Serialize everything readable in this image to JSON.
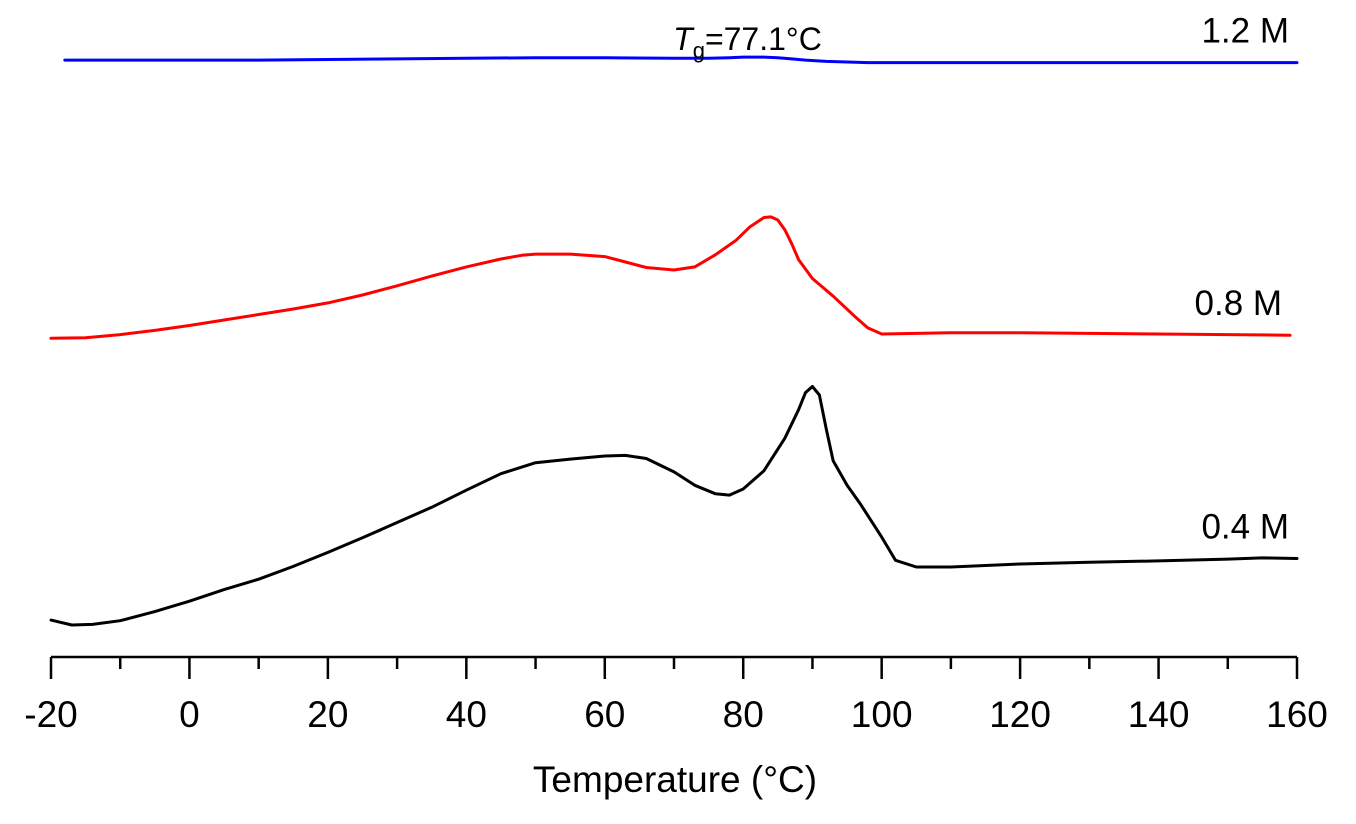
{
  "chart_data": {
    "type": "line",
    "title": "",
    "xlabel": "Temperature (°C)",
    "ylabel": "",
    "xlim": [
      -20,
      160
    ],
    "ylim": [
      0,
      1
    ],
    "xticks": [
      -20,
      0,
      20,
      40,
      60,
      80,
      100,
      120,
      140,
      160
    ],
    "xtick_labels": [
      "-20",
      "0",
      "20",
      "40",
      "60",
      "80",
      "100",
      "120",
      "140",
      "160"
    ],
    "minor_xticks": [
      -10,
      10,
      30,
      50,
      70,
      90,
      110,
      130,
      150
    ],
    "grid": false,
    "annotations": [
      {
        "text_main": "T",
        "text_sub": "g",
        "text_rest": "=77.1°C",
        "x": 77.1
      }
    ],
    "series": [
      {
        "name": "1.2 M",
        "color": "#0000ff",
        "x": [
          -18,
          -10,
          0,
          10,
          20,
          30,
          40,
          50,
          60,
          70,
          75,
          78,
          80,
          83,
          85,
          87,
          89,
          92,
          95,
          98,
          100,
          110,
          120,
          130,
          140,
          150,
          160
        ],
        "y": [
          0.967,
          0.967,
          0.967,
          0.967,
          0.968,
          0.969,
          0.97,
          0.971,
          0.971,
          0.97,
          0.97,
          0.971,
          0.972,
          0.972,
          0.971,
          0.969,
          0.967,
          0.965,
          0.964,
          0.963,
          0.963,
          0.963,
          0.963,
          0.963,
          0.963,
          0.963,
          0.963
        ]
      },
      {
        "name": "0.8 M",
        "color": "#ff0000",
        "x": [
          -20,
          -15,
          -10,
          -5,
          0,
          5,
          10,
          15,
          20,
          25,
          30,
          35,
          40,
          45,
          48,
          50,
          55,
          60,
          63,
          66,
          70,
          73,
          76,
          79,
          81,
          83,
          84,
          85,
          86,
          87,
          88,
          90,
          93,
          96,
          98,
          100,
          105,
          110,
          120,
          130,
          140,
          150,
          159
        ],
        "y": [
          0.511,
          0.512,
          0.517,
          0.524,
          0.532,
          0.541,
          0.55,
          0.559,
          0.569,
          0.582,
          0.597,
          0.613,
          0.628,
          0.641,
          0.647,
          0.649,
          0.649,
          0.645,
          0.636,
          0.627,
          0.623,
          0.628,
          0.648,
          0.672,
          0.694,
          0.709,
          0.71,
          0.705,
          0.689,
          0.666,
          0.64,
          0.609,
          0.58,
          0.548,
          0.528,
          0.518,
          0.519,
          0.52,
          0.52,
          0.519,
          0.518,
          0.517,
          0.516
        ]
      },
      {
        "name": "0.4 M",
        "color": "#000000",
        "x": [
          -20,
          -17,
          -14,
          -10,
          -5,
          0,
          5,
          10,
          15,
          20,
          25,
          30,
          35,
          40,
          45,
          50,
          55,
          60,
          63,
          66,
          70,
          73,
          76,
          78,
          80,
          83,
          86,
          88,
          89,
          90,
          91,
          92,
          93,
          95,
          97,
          100,
          102,
          105,
          110,
          120,
          130,
          140,
          150,
          155,
          160
        ],
        "y": [
          0.049,
          0.041,
          0.042,
          0.048,
          0.063,
          0.08,
          0.099,
          0.116,
          0.137,
          0.16,
          0.184,
          0.209,
          0.234,
          0.262,
          0.289,
          0.307,
          0.313,
          0.318,
          0.319,
          0.314,
          0.292,
          0.27,
          0.256,
          0.254,
          0.264,
          0.294,
          0.347,
          0.394,
          0.422,
          0.432,
          0.418,
          0.362,
          0.31,
          0.27,
          0.238,
          0.185,
          0.147,
          0.136,
          0.136,
          0.141,
          0.144,
          0.146,
          0.149,
          0.151,
          0.15
        ]
      }
    ]
  }
}
